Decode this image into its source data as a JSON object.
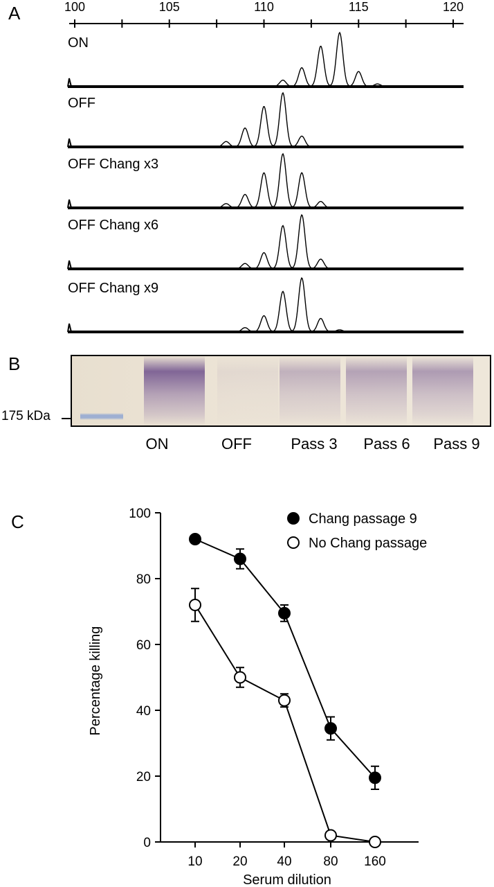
{
  "panels": {
    "a": "A",
    "b": "B",
    "c": "C"
  },
  "panel_a": {
    "x_ticks": [
      "100",
      "105",
      "110",
      "115",
      "120"
    ],
    "traces": [
      {
        "label": "ON",
        "peaks": [
          [
            111,
            0.12
          ],
          [
            112,
            0.35
          ],
          [
            113,
            0.75
          ],
          [
            114,
            1.0
          ],
          [
            115,
            0.28
          ],
          [
            116,
            0.05
          ]
        ]
      },
      {
        "label": "OFF",
        "peaks": [
          [
            108,
            0.1
          ],
          [
            109,
            0.35
          ],
          [
            110,
            0.75
          ],
          [
            111,
            1.0
          ],
          [
            112,
            0.2
          ]
        ]
      },
      {
        "label": "OFF Chang x3",
        "peaks": [
          [
            108,
            0.08
          ],
          [
            109,
            0.25
          ],
          [
            110,
            0.65
          ],
          [
            111,
            1.0
          ],
          [
            112,
            0.65
          ],
          [
            113,
            0.12
          ]
        ]
      },
      {
        "label": "OFF Chang x6",
        "peaks": [
          [
            109,
            0.1
          ],
          [
            110,
            0.3
          ],
          [
            111,
            0.8
          ],
          [
            112,
            1.0
          ],
          [
            113,
            0.18
          ]
        ]
      },
      {
        "label": "OFF Chang x9",
        "peaks": [
          [
            109,
            0.08
          ],
          [
            110,
            0.3
          ],
          [
            111,
            0.75
          ],
          [
            112,
            1.0
          ],
          [
            113,
            0.25
          ],
          [
            114,
            0.04
          ]
        ]
      }
    ]
  },
  "panel_b": {
    "marker_label": "175 kDa",
    "lanes": [
      "ON",
      "OFF",
      "Pass 3",
      "Pass 6",
      "Pass 9"
    ],
    "lane_intensity": [
      0.85,
      0.08,
      0.35,
      0.45,
      0.5
    ]
  },
  "chart_data": {
    "type": "line",
    "xlabel": "Serum dilution",
    "ylabel": "Percentage killing",
    "categories": [
      "10",
      "20",
      "40",
      "80",
      "160"
    ],
    "ylim": [
      0,
      100
    ],
    "yticks": [
      "0",
      "20",
      "40",
      "60",
      "80",
      "100"
    ],
    "legend_position": "top-right",
    "series": [
      {
        "name": "Chang passage 9",
        "marker": "filled-circle",
        "values": [
          92,
          86,
          69.5,
          34.5,
          19.5
        ],
        "errors": [
          1,
          3,
          2.5,
          3.5,
          3.5
        ]
      },
      {
        "name": "No Chang passage",
        "marker": "open-circle",
        "values": [
          72,
          50,
          43,
          2,
          0
        ],
        "errors": [
          5,
          3,
          2,
          0,
          0
        ]
      }
    ]
  }
}
